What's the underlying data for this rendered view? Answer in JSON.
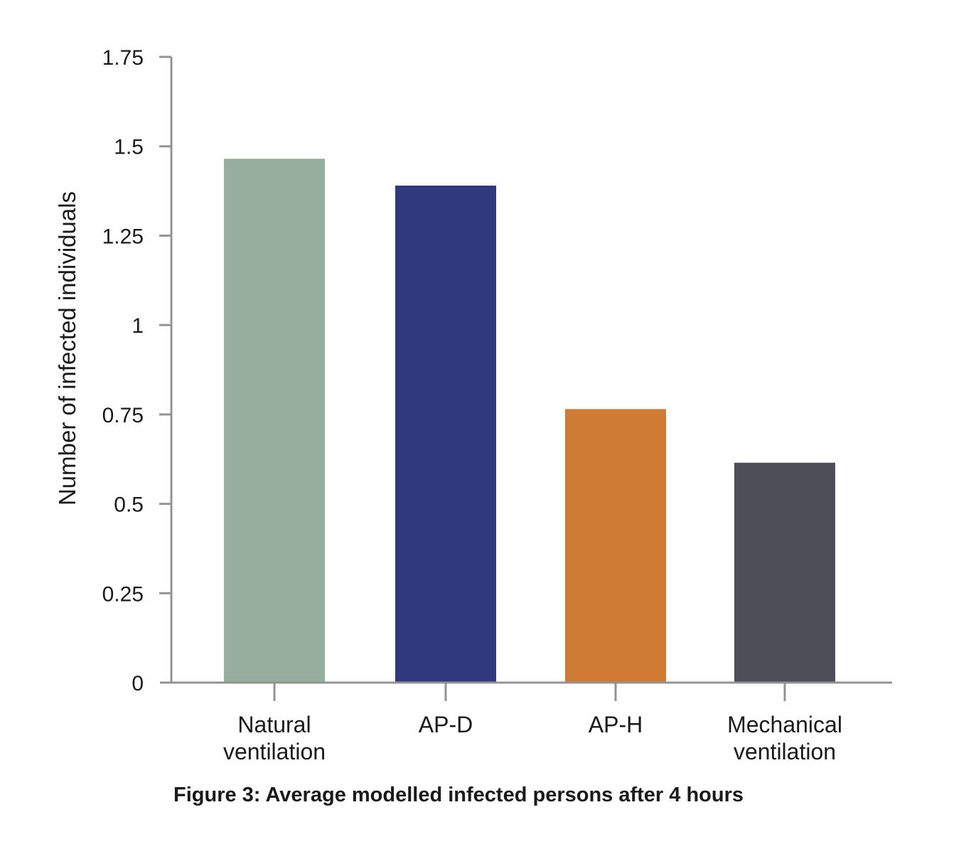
{
  "caption": "Figure 3: Average modelled infected persons after 4 hours",
  "chart_data": {
    "type": "bar",
    "title": "",
    "xlabel": "",
    "ylabel": "Number of infected individuals",
    "categories": [
      [
        "Natural",
        "ventilation"
      ],
      [
        "AP-D"
      ],
      [
        "AP-H"
      ],
      [
        "Mechanical",
        "ventilation"
      ]
    ],
    "values": [
      1.465,
      1.39,
      0.765,
      0.615
    ],
    "colors": [
      "#95ae9e",
      "#30397e",
      "#d07b35",
      "#4c4f57"
    ],
    "ylim": [
      0,
      1.75
    ],
    "yticks": [
      0,
      0.25,
      0.5,
      0.75,
      1,
      1.25,
      1.5,
      1.75
    ],
    "ytick_labels": [
      "0",
      "0.25",
      "0.5",
      "0.75",
      "1",
      "1.25",
      "1.5",
      "1.75"
    ],
    "grid": false,
    "axis_color": "#939393"
  }
}
